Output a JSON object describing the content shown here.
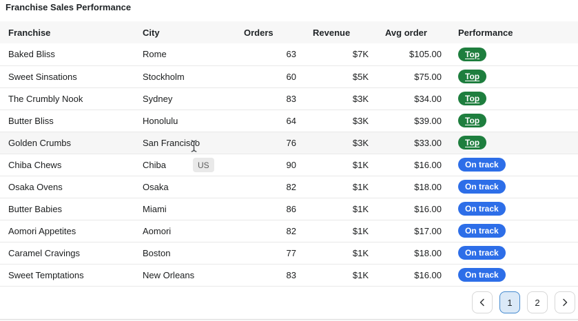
{
  "title": "Franchise Sales Performance",
  "table": {
    "columns": [
      "Franchise",
      "City",
      "Orders",
      "Revenue",
      "Avg order",
      "Performance"
    ],
    "rows": [
      {
        "franchise": "Baked Bliss",
        "city": "Rome",
        "orders": "63",
        "revenue": "$7K",
        "avg_order": "$105.00",
        "performance": "Top",
        "highlighted": false
      },
      {
        "franchise": "Sweet Sinsations",
        "city": "Stockholm",
        "orders": "60",
        "revenue": "$5K",
        "avg_order": "$75.00",
        "performance": "Top",
        "highlighted": false
      },
      {
        "franchise": "The Crumbly Nook",
        "city": "Sydney",
        "orders": "83",
        "revenue": "$3K",
        "avg_order": "$34.00",
        "performance": "Top",
        "highlighted": false
      },
      {
        "franchise": "Butter Bliss",
        "city": "Honolulu",
        "orders": "64",
        "revenue": "$3K",
        "avg_order": "$39.00",
        "performance": "Top",
        "highlighted": false
      },
      {
        "franchise": "Golden Crumbs",
        "city": "San Francisco",
        "orders": "76",
        "revenue": "$3K",
        "avg_order": "$33.00",
        "performance": "Top",
        "highlighted": true
      },
      {
        "franchise": "Chiba Chews",
        "city": "Chiba",
        "orders": "90",
        "revenue": "$1K",
        "avg_order": "$16.00",
        "performance": "On track",
        "highlighted": false
      },
      {
        "franchise": "Osaka Ovens",
        "city": "Osaka",
        "orders": "82",
        "revenue": "$1K",
        "avg_order": "$18.00",
        "performance": "On track",
        "highlighted": false
      },
      {
        "franchise": "Butter Babies",
        "city": "Miami",
        "orders": "86",
        "revenue": "$1K",
        "avg_order": "$16.00",
        "performance": "On track",
        "highlighted": false
      },
      {
        "franchise": "Aomori Appetites",
        "city": "Aomori",
        "orders": "82",
        "revenue": "$1K",
        "avg_order": "$17.00",
        "performance": "On track",
        "highlighted": false
      },
      {
        "franchise": "Caramel Cravings",
        "city": "Boston",
        "orders": "77",
        "revenue": "$1K",
        "avg_order": "$18.00",
        "performance": "On track",
        "highlighted": false
      },
      {
        "franchise": "Sweet Temptations",
        "city": "New Orleans",
        "orders": "83",
        "revenue": "$1K",
        "avg_order": "$16.00",
        "performance": "On track",
        "highlighted": false
      }
    ]
  },
  "tooltip": {
    "text": "US"
  },
  "pagination": {
    "pages": [
      "1",
      "2"
    ],
    "active_page": "1"
  },
  "colors": {
    "top_badge": "#1e7e3e",
    "on_track_badge": "#2d6ee8",
    "active_page_bg": "#dbe9f7",
    "active_page_border": "#4389cf",
    "header_bg": "#f7f7f7",
    "row_hover_bg": "#f6f6f6",
    "row_border": "#e8e8e8"
  }
}
